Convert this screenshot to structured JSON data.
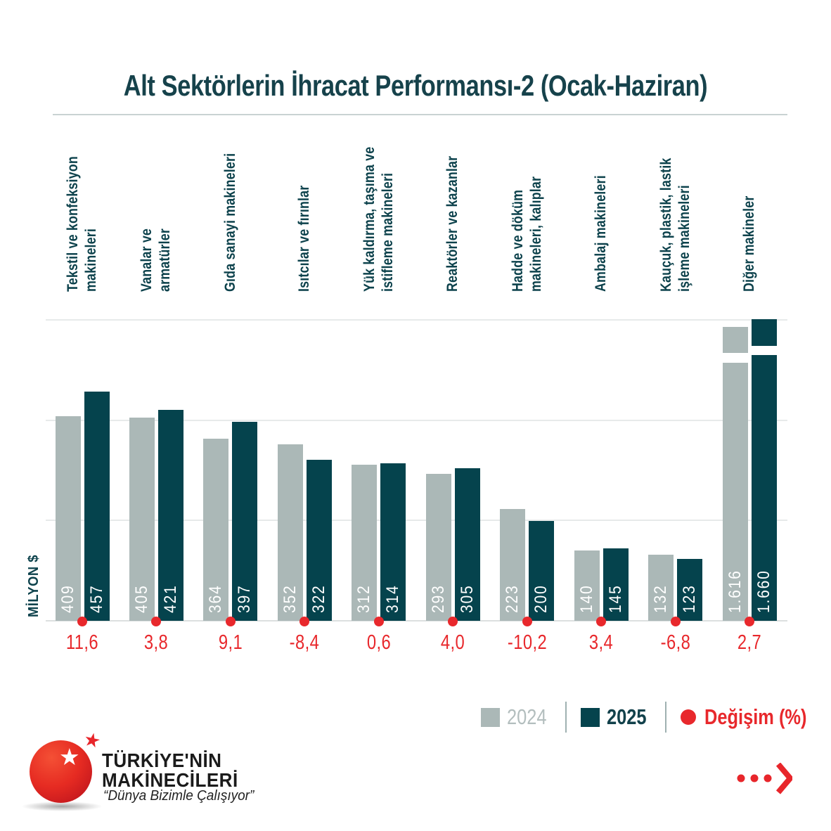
{
  "title": "Alt Sektörlerin İhracat Performansı-2 (Ocak-Haziran)",
  "y_axis_label": "MİLYON $",
  "chart_data": {
    "type": "bar",
    "title": "Alt Sektörlerin İhracat Performansı-2 (Ocak-Haziran)",
    "ylabel": "MİLYON $",
    "ylim": [
      0,
      600
    ],
    "gridlines": [
      0,
      200,
      400,
      600
    ],
    "grid": true,
    "axis_break_on_last_category": true,
    "legend_position": "bottom-right",
    "categories": [
      "Tekstil ve konfeksiyon makineleri",
      "Vanalar ve armatürler",
      "Gıda sanayi makineleri",
      "Isıtcılar ve fırınlar",
      "Yük kaldırma, taşıma ve istifleme makineleri",
      "Reaktörler ve kazanlar",
      "Hadde ve döküm makineleri, kalıplar",
      "Ambalaj makineleri",
      "Kauçuk, plastik, lastik işleme makineleri",
      "Diğer makineler"
    ],
    "category_label_lines": [
      [
        "Tekstil ve konfeksiyon",
        "makineleri"
      ],
      [
        "Vanalar ve",
        "armatürler"
      ],
      [
        "Gıda sanayi makineleri"
      ],
      [
        "Isıtcılar ve fırınlar"
      ],
      [
        "Yük kaldırma, taşıma ve",
        "istifleme makineleri"
      ],
      [
        "Reaktörler ve kazanlar"
      ],
      [
        "Hadde ve döküm",
        "makineleri, kalıplar"
      ],
      [
        "Ambalaj makineleri"
      ],
      [
        "Kauçuk, plastik, lastik",
        "işleme makineleri"
      ],
      [
        "Diğer makineler"
      ]
    ],
    "series": [
      {
        "name": "2024",
        "values": [
          409,
          405,
          364,
          352,
          312,
          293,
          223,
          140,
          132,
          1616
        ],
        "display_values": [
          "409",
          "405",
          "364",
          "352",
          "312",
          "293",
          "223",
          "140",
          "132",
          "1.616"
        ],
        "color": "#abb8b7"
      },
      {
        "name": "2025",
        "values": [
          457,
          421,
          397,
          322,
          314,
          305,
          200,
          145,
          123,
          1660
        ],
        "display_values": [
          "457",
          "421",
          "397",
          "322",
          "314",
          "305",
          "200",
          "145",
          "123",
          "1.660"
        ],
        "color": "#05434d"
      }
    ],
    "change_percent": [
      "11,6",
      "3,8",
      "9,1",
      "-8,4",
      "0,6",
      "4,0",
      "-10,2",
      "3,4",
      "-6,8",
      "2,7"
    ]
  },
  "legend": {
    "items": [
      {
        "label": "2024",
        "marker": "square",
        "color": "#abb8b7"
      },
      {
        "label": "2025",
        "marker": "square",
        "color": "#05434d"
      },
      {
        "label": "Değişim (%)",
        "marker": "circle",
        "color": "#e8282c"
      }
    ]
  },
  "colors": {
    "accent_red": "#e8282c",
    "bar_2024": "#abb8b7",
    "bar_2025": "#05434d",
    "title_teal": "#16424b",
    "gridline": "#e7eaea"
  },
  "logo": {
    "line1": "TÜRKİYE'NİN",
    "line2": "MAKİNECİLERİ",
    "tagline": "“Dünya Bizimle Çalışıyor”",
    "sphere_icon": "red-globe-with-star"
  }
}
